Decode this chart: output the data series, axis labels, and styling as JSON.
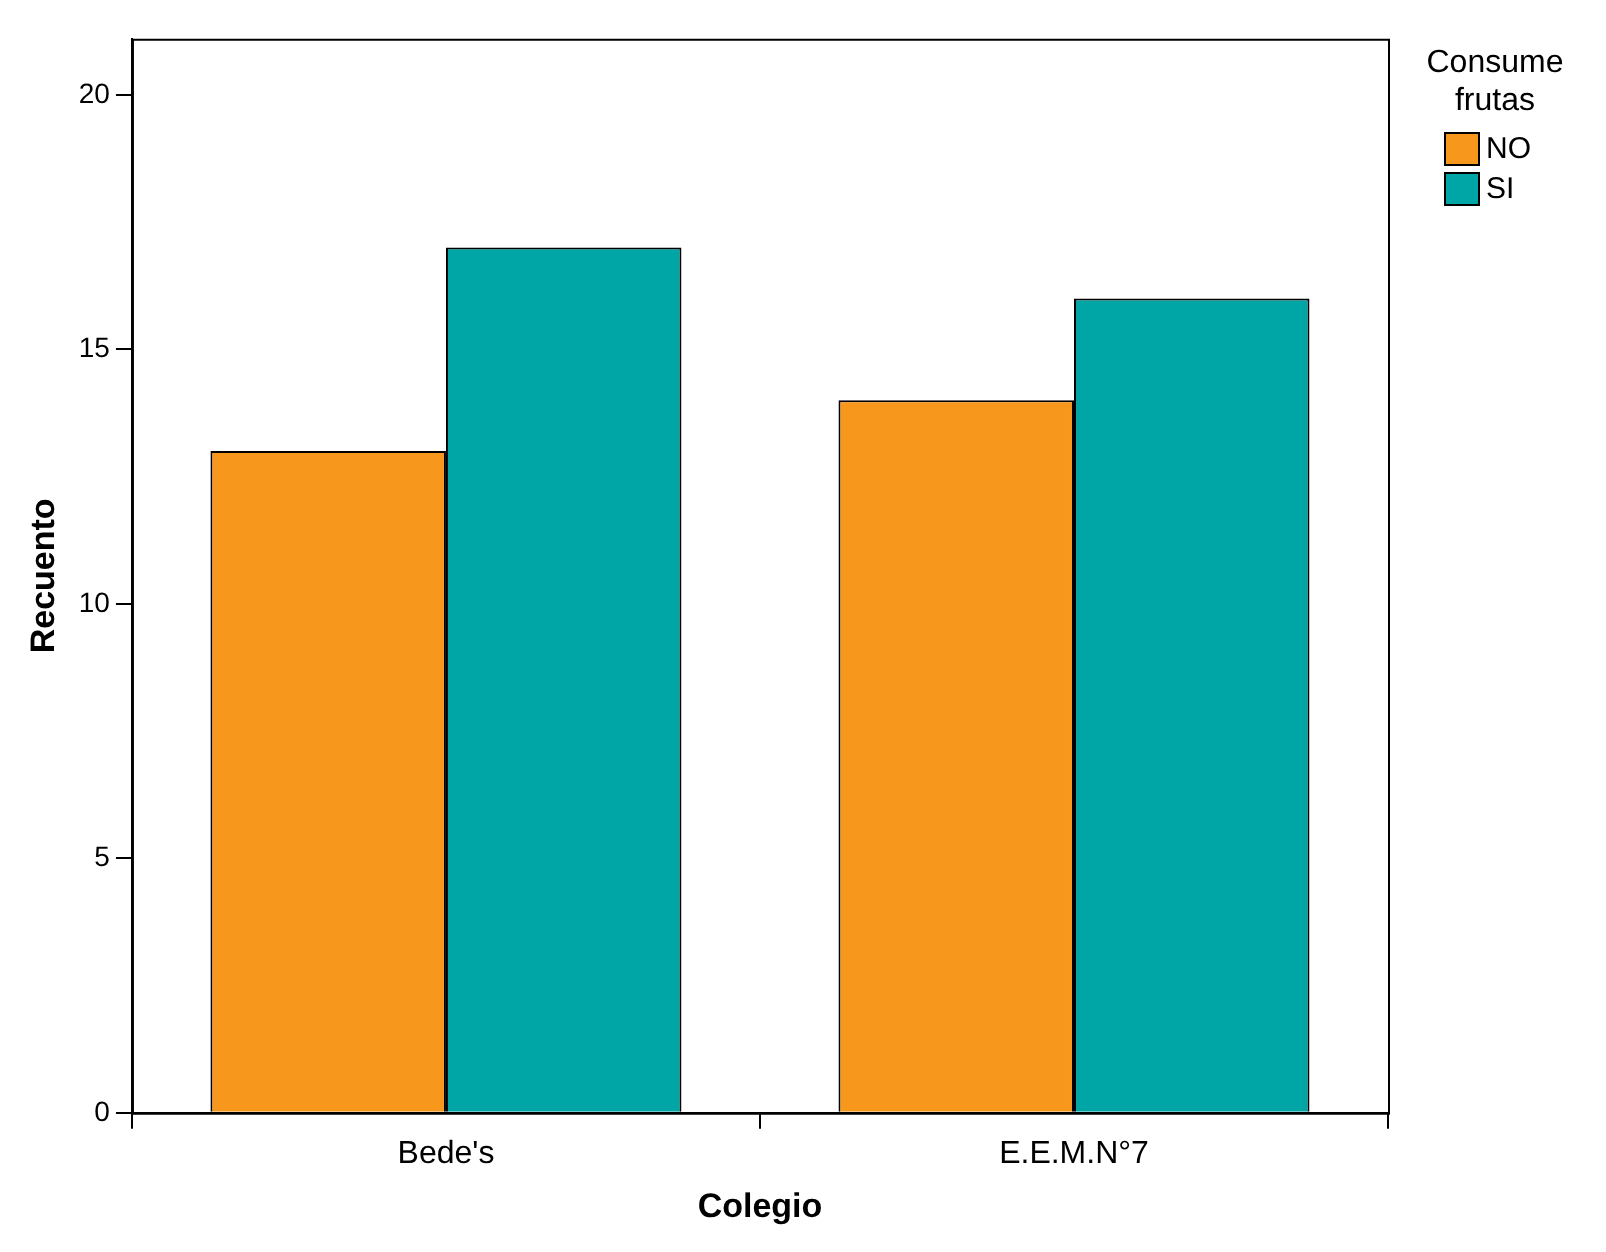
{
  "chart_data": {
    "type": "bar",
    "xlabel": "Colegio",
    "ylabel": "Recuento",
    "legend_title": "Consume frutas",
    "categories": [
      "Bede's",
      "E.E.M.N°7"
    ],
    "series": [
      {
        "name": "NO",
        "color": "#f7981d",
        "values": [
          13,
          14
        ]
      },
      {
        "name": "SI",
        "color": "#00a5a5",
        "values": [
          17,
          16
        ]
      }
    ],
    "ylim": [
      0,
      21.1
    ],
    "yticks": [
      0,
      5,
      10,
      15,
      20
    ],
    "grid": false,
    "legend": "top right"
  }
}
